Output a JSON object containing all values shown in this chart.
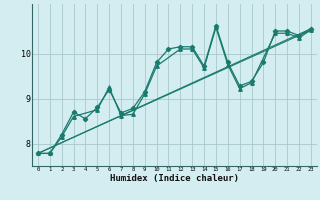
{
  "xlabel": "Humidex (Indice chaleur)",
  "bg_color": "#d4edf0",
  "grid_color": "#a8c8cc",
  "line_color": "#1a7a6e",
  "xlim": [
    -0.5,
    23.5
  ],
  "ylim": [
    7.5,
    11.1
  ],
  "yticks": [
    8,
    9,
    10
  ],
  "xticks": [
    0,
    1,
    2,
    3,
    4,
    5,
    6,
    7,
    8,
    9,
    10,
    11,
    12,
    13,
    14,
    15,
    16,
    17,
    18,
    19,
    20,
    21,
    22,
    23
  ],
  "series1_x": [
    0,
    1,
    2,
    3,
    4,
    5,
    6,
    7,
    8,
    9,
    10,
    11,
    12,
    13,
    14,
    15,
    16,
    17,
    18,
    19,
    20,
    21,
    22,
    23
  ],
  "series1_y": [
    7.78,
    7.78,
    8.2,
    8.7,
    8.55,
    8.8,
    9.2,
    8.68,
    8.78,
    9.15,
    9.8,
    10.1,
    10.15,
    10.15,
    9.72,
    10.62,
    9.8,
    9.28,
    9.38,
    9.8,
    10.5,
    10.5,
    10.4,
    10.55
  ],
  "series2_x": [
    0,
    1,
    2,
    3,
    5,
    6,
    7,
    8,
    9,
    10,
    12,
    13,
    14,
    15,
    16,
    17,
    18,
    20,
    21,
    22,
    23
  ],
  "series2_y": [
    7.78,
    7.78,
    8.15,
    8.6,
    8.75,
    9.25,
    8.62,
    8.65,
    9.1,
    9.72,
    10.1,
    10.1,
    9.68,
    10.58,
    9.75,
    9.22,
    9.35,
    10.45,
    10.45,
    10.35,
    10.52
  ],
  "trend1_x": [
    0,
    23
  ],
  "trend1_y": [
    7.78,
    10.55
  ],
  "trend2_x": [
    0,
    23
  ],
  "trend2_y": [
    7.78,
    10.52
  ]
}
